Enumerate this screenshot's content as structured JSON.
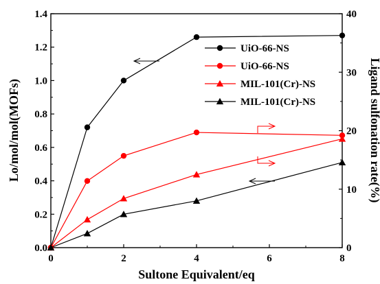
{
  "chart_data": {
    "type": "line",
    "xlabel": "Sultone Equivalent/eq",
    "ylabel_left": "Lo/mol/mol(MOFs)",
    "ylabel_right": "Ligand sulfonation rate(%)",
    "xlim": [
      0,
      8
    ],
    "ylim_left": [
      0,
      1.4
    ],
    "ylim_right": [
      0,
      40
    ],
    "x_ticks": [
      "0",
      "2",
      "4",
      "6",
      "8"
    ],
    "y_left_ticks": [
      "0.0",
      "0.2",
      "0.4",
      "0.6",
      "0.8",
      "1.0",
      "1.2",
      "1.4"
    ],
    "y_right_ticks": [
      "0",
      "10",
      "20",
      "30",
      "40"
    ],
    "grid": false,
    "legend_position": "top-right",
    "series": [
      {
        "name": "UiO-66-NS",
        "axis": "left",
        "color": "#000000",
        "marker": "circle",
        "x": [
          0,
          1,
          2,
          4,
          8
        ],
        "y": [
          0.0,
          0.72,
          1.0,
          1.26,
          1.27
        ]
      },
      {
        "name": "UiO-66-NS",
        "axis": "right",
        "color": "#ff0000",
        "marker": "circle",
        "x": [
          0,
          1,
          2,
          4,
          8
        ],
        "y": [
          0,
          11.4,
          15.7,
          19.7,
          19.2
        ]
      },
      {
        "name": "MIL-101(Cr)-NS",
        "axis": "right",
        "color": "#ff0000",
        "marker": "triangle",
        "x": [
          0,
          1,
          2,
          4,
          8
        ],
        "y": [
          0,
          4.8,
          8.4,
          12.5,
          18.6
        ]
      },
      {
        "name": "MIL-101(Cr)-NS",
        "axis": "left",
        "color": "#000000",
        "marker": "triangle",
        "x": [
          0,
          1,
          2,
          4,
          8
        ],
        "y": [
          0.0,
          0.085,
          0.2,
          0.28,
          0.51
        ]
      }
    ]
  }
}
